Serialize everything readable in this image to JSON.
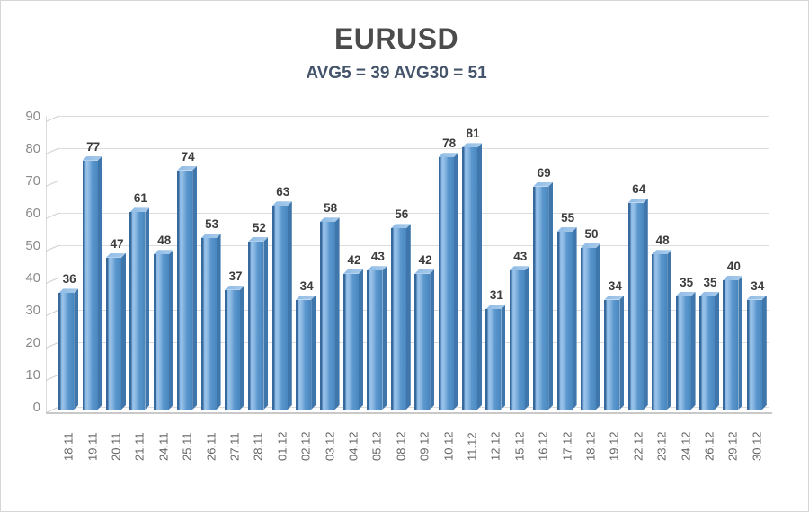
{
  "title": "EURUSD",
  "subtitle": "AVG5 = 39 AVG30 = 51",
  "chart_data": {
    "type": "bar",
    "style": "3d-column",
    "title": "EURUSD",
    "subtitle": "AVG5 = 39 AVG30 = 51",
    "xlabel": "",
    "ylabel": "",
    "ylim": [
      0,
      90
    ],
    "yticks": [
      0,
      10,
      20,
      30,
      40,
      50,
      60,
      70,
      80,
      90
    ],
    "grid": true,
    "legend": false,
    "categories": [
      "18.11",
      "19.11",
      "20.11",
      "21.11",
      "24.11",
      "25.11",
      "26.11",
      "27.11",
      "28.11",
      "01.12",
      "02.12",
      "03.12",
      "04.12",
      "05.12",
      "08.12",
      "09.12",
      "10.12",
      "11.12",
      "12.12",
      "15.12",
      "16.12",
      "17.12",
      "18.12",
      "19.12",
      "22.12",
      "23.12",
      "24.12",
      "26.12",
      "29.12",
      "30.12"
    ],
    "values": [
      36,
      77,
      47,
      61,
      48,
      74,
      53,
      37,
      52,
      63,
      34,
      58,
      42,
      43,
      56,
      42,
      78,
      81,
      31,
      43,
      69,
      55,
      50,
      34,
      64,
      48,
      35,
      35,
      40,
      34
    ],
    "colors": {
      "bar_face": "#5b9bd5",
      "bar_edge_dark": "#38699c",
      "bar_top": "#a3c6e8",
      "bar_side": "#3f76ab",
      "gridline": "#dcdcdc",
      "floor": "#c9c9c9",
      "title_text": "#4c4c4c",
      "subtitle_text": "#44546a",
      "value_label_text": "#3d3d3d",
      "ytick_text": "#8a8a8a",
      "xtick_text": "#666666",
      "background": "#ffffff"
    }
  }
}
